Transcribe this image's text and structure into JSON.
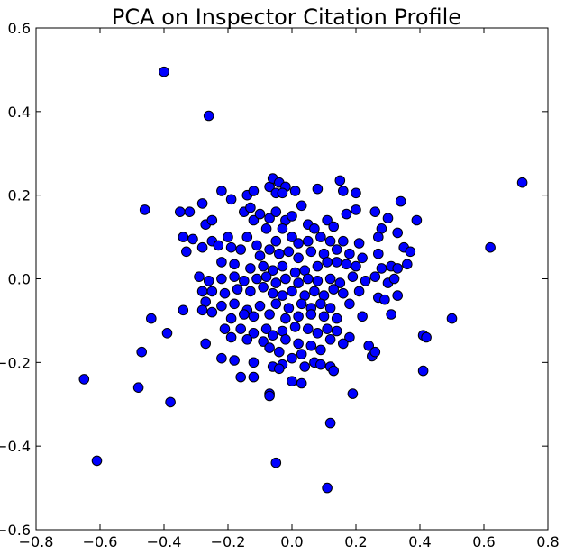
{
  "chart_data": {
    "type": "scatter",
    "title": "PCA on Inspector Citation Profile",
    "xlabel": "",
    "ylabel": "",
    "xlim": [
      -0.8,
      0.8
    ],
    "ylim": [
      -0.6,
      0.6
    ],
    "xticks": [
      "-0.8",
      "-0.6",
      "-0.4",
      "-0.2",
      "0.0",
      "0.2",
      "0.4",
      "0.6",
      "0.8"
    ],
    "yticks": [
      "-0.6",
      "-0.4",
      "-0.2",
      "0.0",
      "0.2",
      "0.4",
      "0.6"
    ],
    "grid": false,
    "colors": {
      "marker_fill": "#0000ff",
      "marker_edge": "#000000",
      "axes": "#000000"
    },
    "series": [
      {
        "points": [
          [
            -0.4,
            0.495
          ],
          [
            -0.26,
            0.39
          ],
          [
            0.72,
            0.23
          ],
          [
            0.62,
            0.075
          ],
          [
            0.5,
            -0.095
          ],
          [
            0.41,
            -0.135
          ],
          [
            0.42,
            -0.14
          ],
          [
            0.41,
            -0.22
          ],
          [
            -0.65,
            -0.24
          ],
          [
            -0.61,
            -0.435
          ],
          [
            -0.48,
            -0.26
          ],
          [
            -0.38,
            -0.295
          ],
          [
            -0.47,
            -0.175
          ],
          [
            -0.44,
            -0.095
          ],
          [
            -0.46,
            0.165
          ],
          [
            -0.39,
            -0.13
          ],
          [
            0.12,
            -0.345
          ],
          [
            0.11,
            -0.5
          ],
          [
            -0.05,
            -0.44
          ],
          [
            -0.07,
            -0.275
          ],
          [
            -0.07,
            -0.28
          ],
          [
            0.19,
            -0.275
          ],
          [
            -0.35,
            0.16
          ],
          [
            -0.32,
            0.16
          ],
          [
            -0.28,
            0.18
          ],
          [
            -0.22,
            0.21
          ],
          [
            -0.19,
            0.19
          ],
          [
            -0.14,
            0.2
          ],
          [
            -0.12,
            0.21
          ],
          [
            -0.07,
            0.22
          ],
          [
            -0.06,
            0.24
          ],
          [
            -0.04,
            0.23
          ],
          [
            -0.02,
            0.22
          ],
          [
            -0.05,
            0.205
          ],
          [
            -0.03,
            0.205
          ],
          [
            0.01,
            0.21
          ],
          [
            0.08,
            0.215
          ],
          [
            0.15,
            0.235
          ],
          [
            0.16,
            0.21
          ],
          [
            0.2,
            0.205
          ],
          [
            0.26,
            0.16
          ],
          [
            0.34,
            0.185
          ],
          [
            0.3,
            0.145
          ],
          [
            0.39,
            0.14
          ],
          [
            0.33,
            0.11
          ],
          [
            0.28,
            0.12
          ],
          [
            0.27,
            0.1
          ],
          [
            -0.34,
            0.1
          ],
          [
            -0.33,
            0.065
          ],
          [
            -0.31,
            0.095
          ],
          [
            -0.27,
            0.13
          ],
          [
            -0.25,
            0.14
          ],
          [
            -0.25,
            0.09
          ],
          [
            -0.23,
            0.08
          ],
          [
            -0.28,
            0.075
          ],
          [
            -0.2,
            0.1
          ],
          [
            -0.19,
            0.075
          ],
          [
            -0.15,
            0.16
          ],
          [
            -0.13,
            0.17
          ],
          [
            -0.12,
            0.14
          ],
          [
            -0.1,
            0.155
          ],
          [
            -0.07,
            0.145
          ],
          [
            -0.05,
            0.16
          ],
          [
            -0.02,
            0.14
          ],
          [
            0.0,
            0.15
          ],
          [
            0.03,
            0.175
          ],
          [
            0.05,
            0.13
          ],
          [
            0.07,
            0.12
          ],
          [
            0.11,
            0.14
          ],
          [
            0.13,
            0.125
          ],
          [
            0.17,
            0.155
          ],
          [
            0.2,
            0.165
          ],
          [
            -0.14,
            0.1
          ],
          [
            -0.11,
            0.08
          ],
          [
            -0.08,
            0.12
          ],
          [
            -0.05,
            0.09
          ],
          [
            -0.03,
            0.12
          ],
          [
            0.0,
            0.1
          ],
          [
            0.02,
            0.085
          ],
          [
            0.05,
            0.09
          ],
          [
            0.09,
            0.1
          ],
          [
            0.12,
            0.09
          ],
          [
            0.16,
            0.09
          ],
          [
            0.21,
            0.085
          ],
          [
            -0.16,
            0.07
          ],
          [
            -0.1,
            0.055
          ],
          [
            -0.07,
            0.07
          ],
          [
            -0.04,
            0.06
          ],
          [
            -0.01,
            0.065
          ],
          [
            0.02,
            0.05
          ],
          [
            0.06,
            0.065
          ],
          [
            0.1,
            0.06
          ],
          [
            0.14,
            0.07
          ],
          [
            0.18,
            0.06
          ],
          [
            0.22,
            0.05
          ],
          [
            0.35,
            0.075
          ],
          [
            0.37,
            0.065
          ],
          [
            0.27,
            0.06
          ],
          [
            -0.22,
            0.04
          ],
          [
            -0.18,
            0.035
          ],
          [
            -0.13,
            0.025
          ],
          [
            -0.09,
            0.03
          ],
          [
            -0.06,
            0.02
          ],
          [
            -0.03,
            0.03
          ],
          [
            0.01,
            0.015
          ],
          [
            0.04,
            0.02
          ],
          [
            0.08,
            0.03
          ],
          [
            0.11,
            0.04
          ],
          [
            0.14,
            0.04
          ],
          [
            0.17,
            0.035
          ],
          [
            0.2,
            0.03
          ],
          [
            0.28,
            0.025
          ],
          [
            0.31,
            0.03
          ],
          [
            0.33,
            0.025
          ],
          [
            0.36,
            0.035
          ],
          [
            -0.29,
            0.005
          ],
          [
            -0.26,
            -0.005
          ],
          [
            -0.22,
            0.0
          ],
          [
            -0.18,
            0.005
          ],
          [
            -0.15,
            -0.005
          ],
          [
            -0.11,
            0.0
          ],
          [
            -0.08,
            0.005
          ],
          [
            -0.05,
            -0.01
          ],
          [
            -0.02,
            0.0
          ],
          [
            0.02,
            -0.01
          ],
          [
            0.05,
            0.0
          ],
          [
            0.08,
            -0.005
          ],
          [
            0.12,
            0.0
          ],
          [
            0.15,
            -0.01
          ],
          [
            0.19,
            0.005
          ],
          [
            0.23,
            -0.005
          ],
          [
            0.26,
            0.005
          ],
          [
            0.3,
            -0.01
          ],
          [
            0.32,
            0.0
          ],
          [
            -0.25,
            -0.03
          ],
          [
            -0.21,
            -0.035
          ],
          [
            -0.17,
            -0.025
          ],
          [
            -0.13,
            -0.03
          ],
          [
            -0.09,
            -0.02
          ],
          [
            -0.06,
            -0.035
          ],
          [
            -0.03,
            -0.04
          ],
          [
            0.0,
            -0.03
          ],
          [
            0.04,
            -0.04
          ],
          [
            0.07,
            -0.03
          ],
          [
            0.1,
            -0.04
          ],
          [
            0.13,
            -0.025
          ],
          [
            0.16,
            -0.035
          ],
          [
            0.21,
            -0.03
          ],
          [
            0.27,
            -0.045
          ],
          [
            0.29,
            -0.05
          ],
          [
            0.33,
            -0.04
          ],
          [
            -0.28,
            -0.03
          ],
          [
            -0.27,
            -0.055
          ],
          [
            -0.22,
            -0.065
          ],
          [
            -0.18,
            -0.06
          ],
          [
            -0.14,
            -0.075
          ],
          [
            -0.1,
            -0.065
          ],
          [
            -0.05,
            -0.06
          ],
          [
            -0.01,
            -0.07
          ],
          [
            0.03,
            -0.06
          ],
          [
            0.06,
            -0.07
          ],
          [
            0.09,
            -0.06
          ],
          [
            0.12,
            -0.07
          ],
          [
            0.18,
            -0.06
          ],
          [
            -0.34,
            -0.075
          ],
          [
            -0.28,
            -0.075
          ],
          [
            -0.25,
            -0.08
          ],
          [
            -0.19,
            -0.095
          ],
          [
            -0.15,
            -0.085
          ],
          [
            -0.12,
            -0.09
          ],
          [
            -0.07,
            -0.085
          ],
          [
            -0.02,
            -0.095
          ],
          [
            0.02,
            -0.09
          ],
          [
            0.06,
            -0.085
          ],
          [
            0.1,
            -0.09
          ],
          [
            0.14,
            -0.095
          ],
          [
            0.22,
            -0.09
          ],
          [
            0.31,
            -0.085
          ],
          [
            -0.21,
            -0.12
          ],
          [
            -0.16,
            -0.12
          ],
          [
            -0.12,
            -0.13
          ],
          [
            -0.08,
            -0.12
          ],
          [
            -0.03,
            -0.125
          ],
          [
            0.01,
            -0.115
          ],
          [
            0.05,
            -0.12
          ],
          [
            0.08,
            -0.13
          ],
          [
            0.11,
            -0.12
          ],
          [
            0.14,
            -0.125
          ],
          [
            0.18,
            -0.14
          ],
          [
            0.16,
            -0.155
          ],
          [
            -0.27,
            -0.155
          ],
          [
            -0.19,
            -0.14
          ],
          [
            -0.14,
            -0.145
          ],
          [
            -0.09,
            -0.15
          ],
          [
            -0.06,
            -0.135
          ],
          [
            -0.02,
            -0.145
          ],
          [
            0.02,
            -0.155
          ],
          [
            0.06,
            -0.16
          ],
          [
            0.09,
            -0.17
          ],
          [
            0.12,
            -0.145
          ],
          [
            0.24,
            -0.16
          ],
          [
            0.25,
            -0.185
          ],
          [
            0.26,
            -0.175
          ],
          [
            -0.07,
            -0.165
          ],
          [
            -0.04,
            -0.175
          ],
          [
            0.0,
            -0.19
          ],
          [
            0.03,
            -0.18
          ],
          [
            -0.22,
            -0.19
          ],
          [
            -0.18,
            -0.195
          ],
          [
            -0.12,
            -0.2
          ],
          [
            -0.06,
            -0.21
          ],
          [
            -0.03,
            -0.205
          ],
          [
            0.04,
            -0.21
          ],
          [
            0.07,
            -0.2
          ],
          [
            0.09,
            -0.205
          ],
          [
            0.12,
            -0.21
          ],
          [
            0.13,
            -0.22
          ],
          [
            -0.04,
            -0.215
          ],
          [
            0.0,
            -0.245
          ],
          [
            0.03,
            -0.25
          ],
          [
            -0.16,
            -0.235
          ],
          [
            -0.12,
            -0.235
          ]
        ]
      }
    ]
  }
}
